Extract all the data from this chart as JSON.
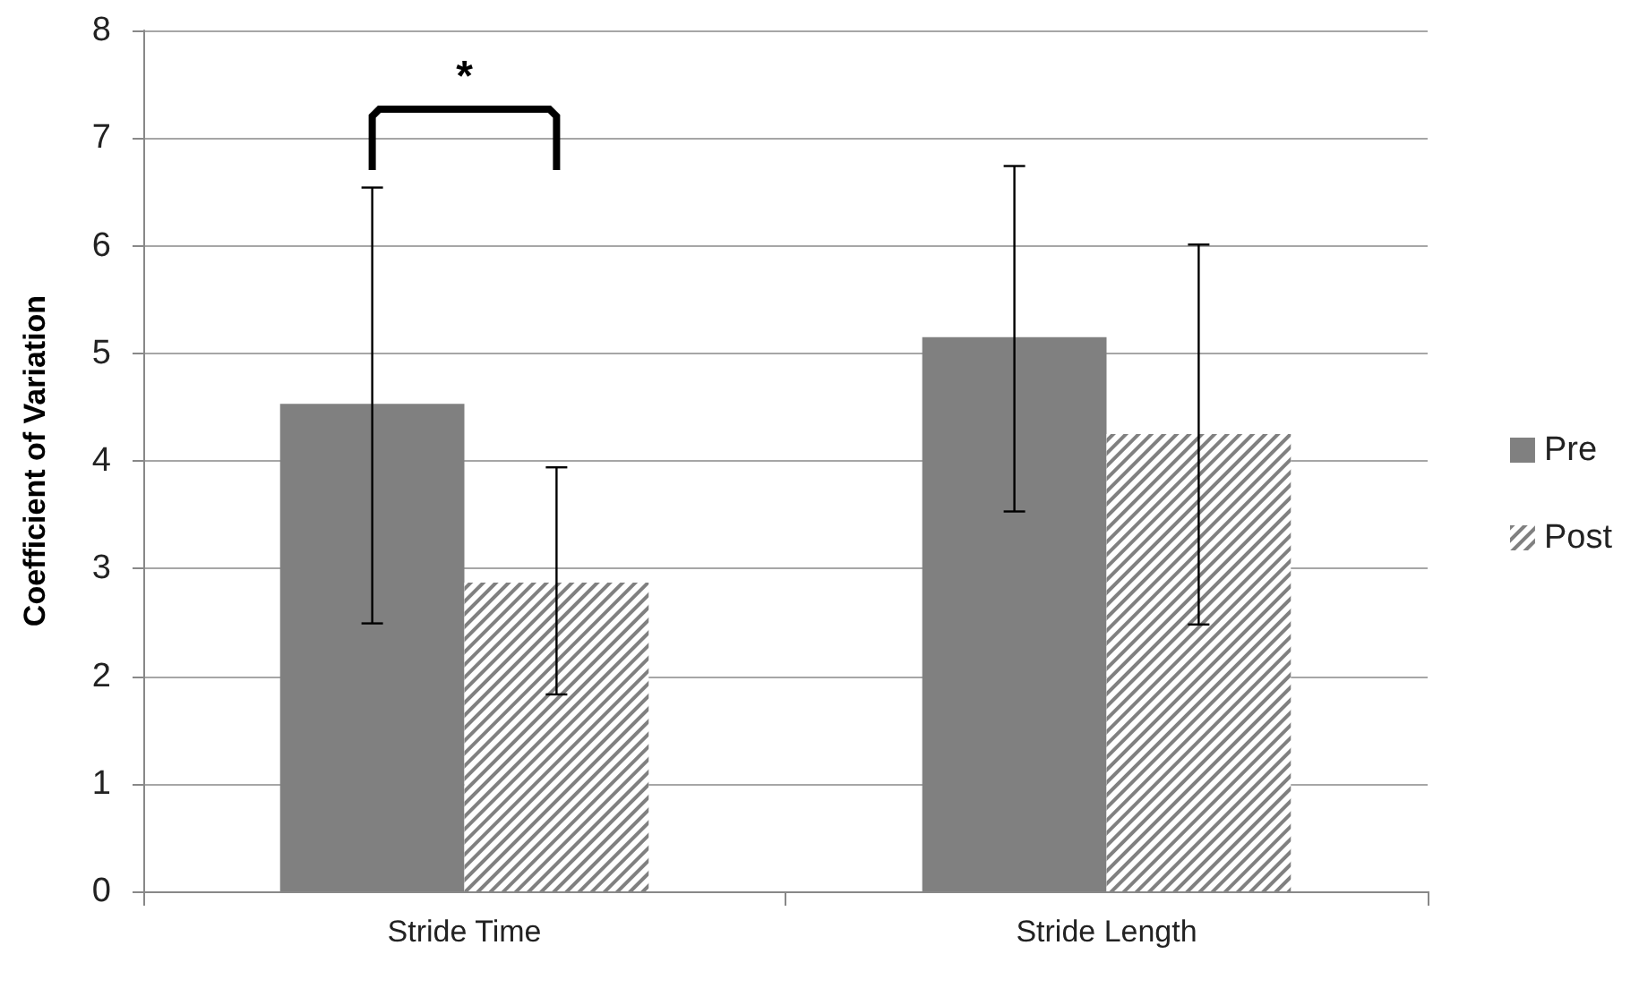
{
  "chart_data": {
    "type": "bar",
    "ylabel": "Coefficient of Variation",
    "categories": [
      "Stride Time",
      "Stride Length"
    ],
    "series": [
      {
        "name": "Pre",
        "color": "#808080",
        "values": [
          4.53,
          5.15
        ],
        "errors": [
          [
            2.49,
            6.54
          ],
          [
            3.53,
            6.74
          ]
        ]
      },
      {
        "name": "Post",
        "color": "#808080",
        "values": [
          2.87,
          4.25
        ],
        "errors": [
          [
            1.83,
            3.94
          ],
          [
            2.48,
            6.01
          ]
        ]
      }
    ],
    "ylim": [
      0,
      8
    ],
    "yticks": [
      0,
      1,
      2,
      3,
      4,
      5,
      6,
      7,
      8
    ],
    "grid": "y",
    "legend": "right",
    "annotations": [
      "*"
    ]
  }
}
